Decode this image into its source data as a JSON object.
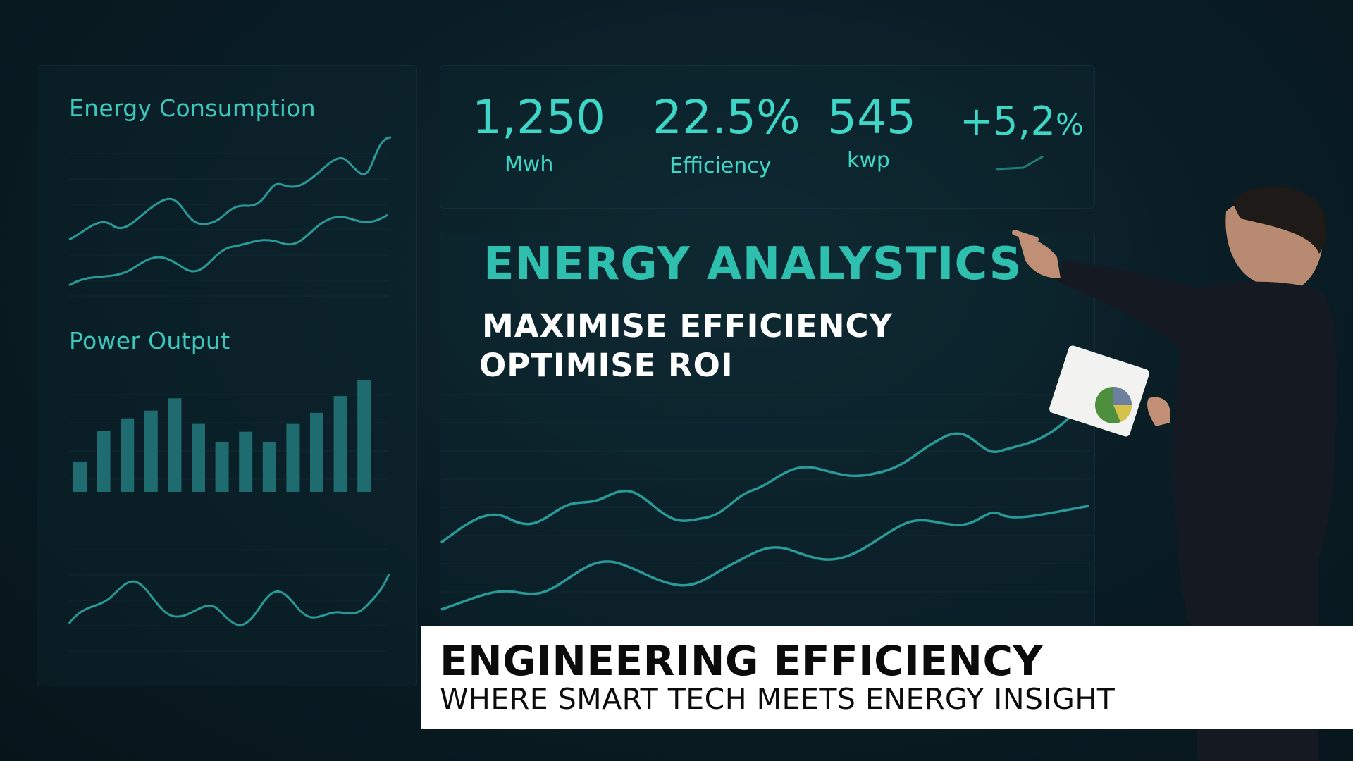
{
  "left_panel": {
    "energy_title": "Energy Consumption",
    "power_title": "Power Output"
  },
  "kpis": [
    {
      "value": "1,250",
      "label": "Mwh"
    },
    {
      "value": "22.5%",
      "label": "Efficiency"
    },
    {
      "value": "545",
      "label": "kwp"
    },
    {
      "value": "+5,2",
      "unit": "%",
      "label": ""
    }
  ],
  "hero": {
    "title": "ENERGY ANALYSTICS",
    "line1": "MAXIMISE EFFICIENCY",
    "line2": "OPTIMISE ROI"
  },
  "lower_third": {
    "title": "ENGINEERING EFFICIENCY",
    "subtitle": "WHERE SMART TECH MEETS ENERGY INSIGHT"
  },
  "power_bars": [
    0.27,
    0.55,
    0.66,
    0.73,
    0.84,
    0.61,
    0.45,
    0.54,
    0.45,
    0.61,
    0.71,
    0.86,
    1.0
  ],
  "colors": {
    "accent": "#2ec7bb",
    "background": "#0a1d25",
    "line": "#2a9a98",
    "bar": "#1f6c70"
  }
}
